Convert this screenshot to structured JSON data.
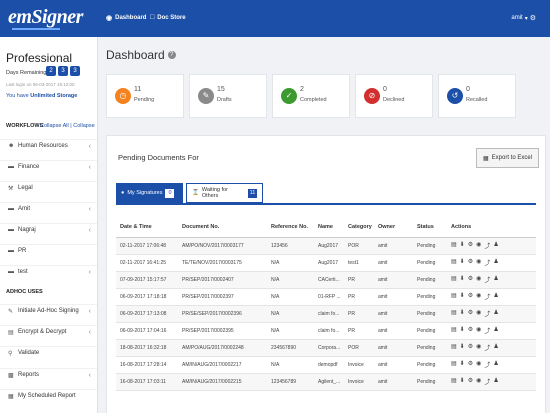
{
  "topbar": {
    "logo": "emSigner",
    "nav": [
      {
        "icon": "dashboard-icon",
        "label": "Dashboard"
      },
      {
        "icon": "doc-store-icon",
        "label": "Doc Store"
      }
    ],
    "user": "amit"
  },
  "sidebar": {
    "plan": "Professional",
    "days_label": "Days Remaining",
    "days": [
      "2",
      "3",
      "3"
    ],
    "last_login": "Last login on 06-03-2017 19:12:00",
    "storage_prefix": "You have",
    "storage_value": "Unlimited Storage",
    "workflows_label": "WORKFLOWS",
    "collapse_all": "Collapse All",
    "collapse_sep": "|",
    "collapse": "Collapse",
    "workflows": [
      {
        "label": "Human Resources",
        "icon": "users-icon"
      },
      {
        "label": "Finance",
        "icon": "folder-icon"
      },
      {
        "label": "Legal",
        "icon": "gavel-icon"
      },
      {
        "label": "Amit",
        "icon": "folder-icon"
      },
      {
        "label": "Nagraj",
        "icon": "folder-icon"
      },
      {
        "label": "PR",
        "icon": "folder-icon"
      },
      {
        "label": "test",
        "icon": "folder-icon"
      }
    ],
    "adhoc_label": "ADHOC USES",
    "adhoc": [
      {
        "label": "Initiate Ad-Hoc Signing",
        "icon": "pen-icon"
      },
      {
        "label": "Encrypt & Decrypt",
        "icon": "lock-icon"
      },
      {
        "label": "Validate",
        "icon": "search-icon"
      },
      {
        "label": "Reports",
        "icon": "bar-chart-icon"
      },
      {
        "label": "My Scheduled Report",
        "icon": "calendar-icon"
      }
    ]
  },
  "main": {
    "title": "Dashboard",
    "stats": [
      {
        "num": "11",
        "label": "Pending",
        "color": "#f58220",
        "icon": "clock-icon"
      },
      {
        "num": "15",
        "label": "Drafts",
        "color": "#8a8a8a",
        "icon": "draft-icon"
      },
      {
        "num": "2",
        "label": "Completed",
        "color": "#3c9a2e",
        "icon": "check-icon"
      },
      {
        "num": "0",
        "label": "Declined",
        "color": "#d32f2f",
        "icon": "ban-icon"
      },
      {
        "num": "0",
        "label": "Recalled",
        "color": "#1c4fa8",
        "icon": "recall-icon"
      }
    ],
    "panel_title": "Pending Documents For",
    "export_label": "Export to Excel",
    "tabs": [
      {
        "label": "My Signatures",
        "count": "0"
      },
      {
        "label": "Waiting for Others",
        "count": "11"
      }
    ],
    "table": {
      "columns": [
        "Date & Time",
        "Document No.",
        "Reference No.",
        "Name",
        "Category",
        "Owner",
        "Status",
        "Actions"
      ],
      "rows": [
        [
          "02-11-2017 17:06:48",
          "AM/PO/NOV/2017/0003177",
          "123456",
          "Aug2017",
          "POR",
          "amit",
          "Pending"
        ],
        [
          "02-11-2017 16:41:25",
          "TE/TE/NOV/2017/0003175",
          "N/A",
          "Aug2017",
          "test1",
          "amit",
          "Pending"
        ],
        [
          "07-09-2017 15:17:57",
          "PR/SEP/2017/0002407",
          "N/A",
          "CACerti...",
          "PR",
          "amit",
          "Pending"
        ],
        [
          "06-09-2017 17:18:18",
          "PR/SEP/2017/0002397",
          "N/A",
          "01-RFP ...",
          "PR",
          "amit",
          "Pending"
        ],
        [
          "06-09-2017 17:13:08",
          "PR/SE/SEP/2017/0002396",
          "N/A",
          "claim fo...",
          "PR",
          "amit",
          "Pending"
        ],
        [
          "06-09-2017 17:04:16",
          "PR/SEP/2017/0002395",
          "N/A",
          "claim fo...",
          "PR",
          "amit",
          "Pending"
        ],
        [
          "18-08-2017 16:32:18",
          "AM/PO/AUG/2017/0002248",
          "234567890",
          "Corpora...",
          "POR",
          "amit",
          "Pending"
        ],
        [
          "16-08-2017 17:28:14",
          "AM/IN/AUG/2017/0002217",
          "N/A",
          "demopdf",
          "Invoice",
          "amit",
          "Pending"
        ],
        [
          "16-08-2017 17:03:11",
          "AM/IN/AUG/2017/0002215",
          "123456789",
          "Agilent_...",
          "Invoice",
          "amit",
          "Pending"
        ]
      ],
      "action_icons": [
        "file-icon",
        "download-icon",
        "settings-icon",
        "view-icon",
        "share-icon",
        "signer-icon"
      ]
    }
  }
}
